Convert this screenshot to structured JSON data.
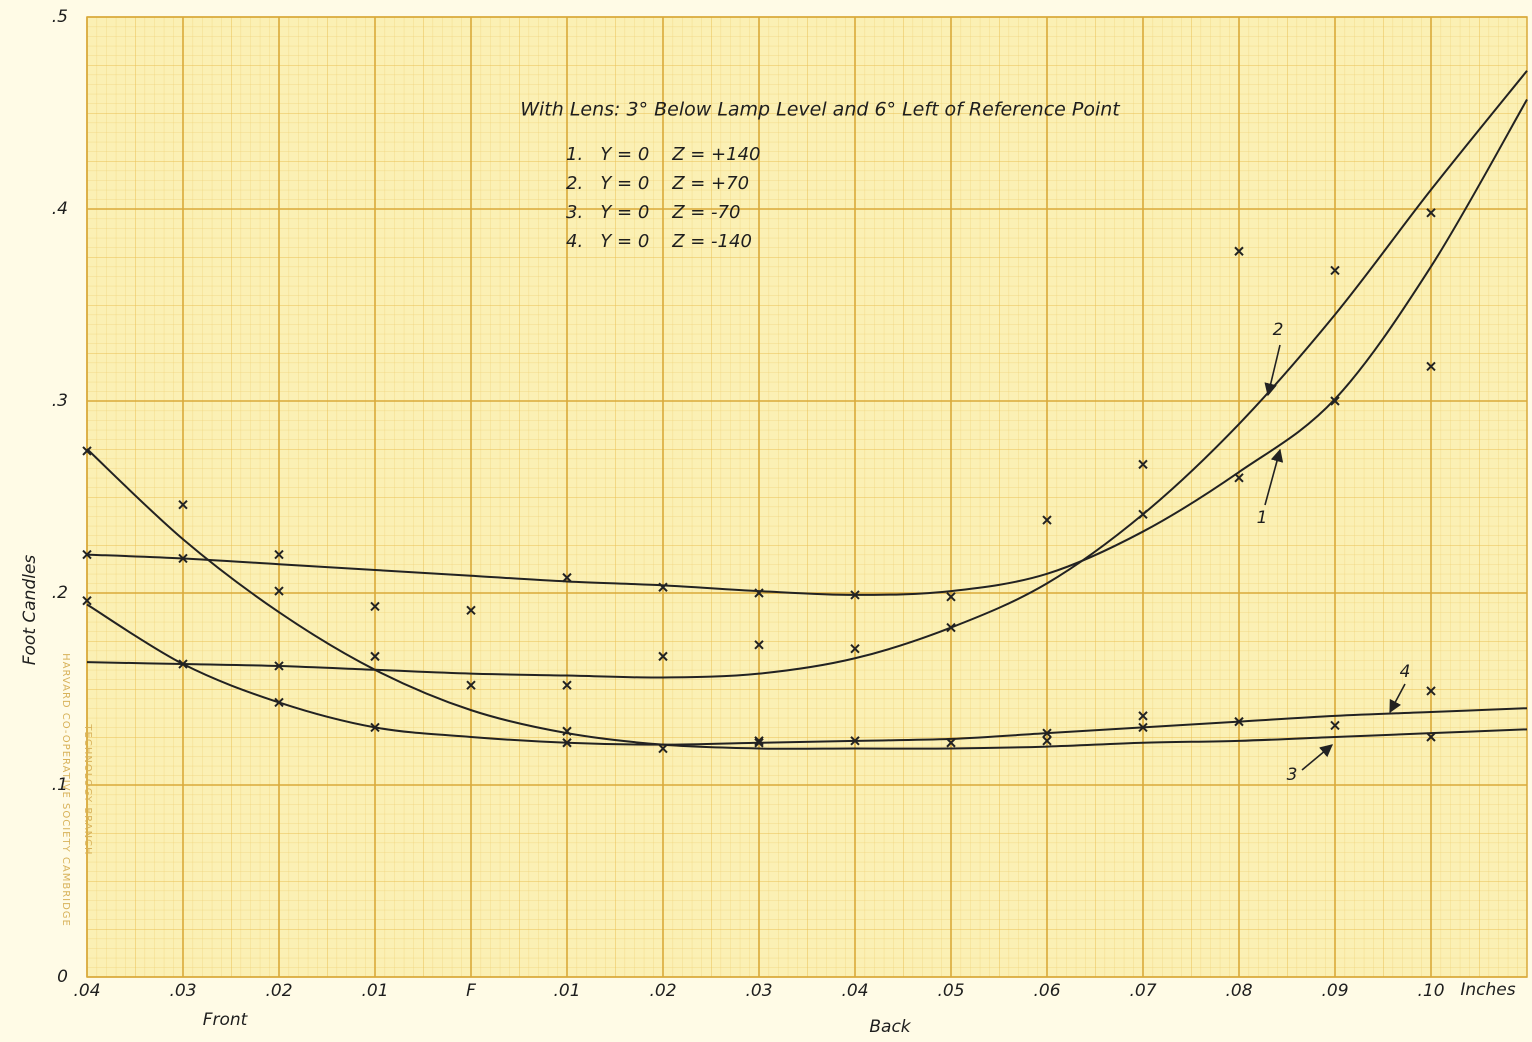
{
  "chart_data": {
    "type": "line",
    "title": "With Lens: 3° Below Lamp Level and 6° Left of Reference Point",
    "ylabel": "Foot Candles",
    "xlabel_front": "Front",
    "xlabel_back": "Back",
    "x_unit": "Inches",
    "watermark": [
      "TECHNOLOGY BRANCH",
      "HARVARD CO-OPERATIVE SOCIETY CAMBRIDGE"
    ],
    "xlim": [
      -0.04,
      0.11
    ],
    "ylim": [
      0,
      0.5
    ],
    "xticks": [
      {
        "value": -0.04,
        "label": ".04"
      },
      {
        "value": -0.03,
        "label": ".03"
      },
      {
        "value": -0.02,
        "label": ".02"
      },
      {
        "value": -0.01,
        "label": ".01"
      },
      {
        "value": 0,
        "label": "F"
      },
      {
        "value": 0.01,
        "label": ".01"
      },
      {
        "value": 0.02,
        "label": ".02"
      },
      {
        "value": 0.03,
        "label": ".03"
      },
      {
        "value": 0.04,
        "label": ".04"
      },
      {
        "value": 0.05,
        "label": ".05"
      },
      {
        "value": 0.06,
        "label": ".06"
      },
      {
        "value": 0.07,
        "label": ".07"
      },
      {
        "value": 0.08,
        "label": ".08"
      },
      {
        "value": 0.09,
        "label": ".09"
      },
      {
        "value": 0.1,
        "label": ".10"
      }
    ],
    "yticks": [
      0,
      {
        "value": 0.1,
        "label": ".1"
      },
      {
        "value": 0.2,
        "label": ".2"
      },
      {
        "value": 0.3,
        "label": ".3"
      },
      {
        "value": 0.4,
        "label": ".4"
      },
      {
        "value": 0.5,
        "label": ".5"
      }
    ],
    "grid": true,
    "x": [
      -0.04,
      -0.03,
      -0.02,
      -0.01,
      0,
      0.01,
      0.02,
      0.03,
      0.04,
      0.05,
      0.06,
      0.07,
      0.08,
      0.09,
      0.1,
      0.11
    ],
    "series": [
      {
        "name": "1.   Y = 0    Z = +140",
        "label": "1",
        "color": "#222222",
        "values": [
          0.22,
          0.218,
          0.215,
          0.212,
          0.209,
          0.206,
          0.204,
          0.201,
          0.199,
          0.201,
          0.21,
          0.232,
          0.263,
          0.301,
          0.37,
          0.457
        ]
      },
      {
        "name": "2.   Y = 0    Z = +70",
        "label": "2",
        "color": "#222222",
        "values": [
          0.164,
          0.163,
          0.162,
          0.16,
          0.158,
          0.157,
          0.156,
          0.158,
          0.166,
          0.182,
          0.205,
          0.241,
          0.288,
          0.345,
          0.41,
          0.472
        ]
      },
      {
        "name": "3.   Y = 0    Z = -70",
        "label": "3",
        "color": "#222222",
        "values": [
          0.275,
          0.228,
          0.19,
          0.16,
          0.139,
          0.127,
          0.121,
          0.119,
          0.119,
          0.119,
          0.12,
          0.122,
          0.123,
          0.125,
          0.127,
          0.129
        ]
      },
      {
        "name": "4.   Y = 0    Z = -140",
        "label": "4",
        "color": "#222222",
        "values": [
          0.194,
          0.163,
          0.143,
          0.13,
          0.125,
          0.122,
          0.121,
          0.122,
          0.123,
          0.124,
          0.127,
          0.13,
          0.133,
          0.136,
          0.138,
          0.14
        ]
      }
    ],
    "observations": {
      "x": [
        -0.04,
        -0.04,
        -0.04,
        -0.03,
        -0.03,
        -0.03,
        -0.02,
        -0.02,
        -0.02,
        -0.02,
        -0.01,
        -0.01,
        -0.01,
        0,
        0,
        0.01,
        0.01,
        0.01,
        0.01,
        0.02,
        0.02,
        0.02,
        0.03,
        0.03,
        0.03,
        0.03,
        0.04,
        0.04,
        0.04,
        0.05,
        0.05,
        0.05,
        0.06,
        0.06,
        0.06,
        0.07,
        0.07,
        0.07,
        0.07,
        0.08,
        0.08,
        0.08,
        0.09,
        0.09,
        0.09,
        0.1,
        0.1,
        0.1,
        0.1
      ],
      "y": [
        0.274,
        0.22,
        0.196,
        0.246,
        0.218,
        0.163,
        0.22,
        0.201,
        0.162,
        0.143,
        0.193,
        0.167,
        0.13,
        0.191,
        0.152,
        0.208,
        0.152,
        0.128,
        0.122,
        0.203,
        0.167,
        0.119,
        0.2,
        0.173,
        0.123,
        0.122,
        0.199,
        0.171,
        0.123,
        0.198,
        0.182,
        0.122,
        0.238,
        0.127,
        0.123,
        0.267,
        0.241,
        0.136,
        0.13,
        0.378,
        0.26,
        0.133,
        0.368,
        0.3,
        0.131,
        0.398,
        0.318,
        0.149,
        0.125
      ],
      "color": "#222222"
    }
  }
}
